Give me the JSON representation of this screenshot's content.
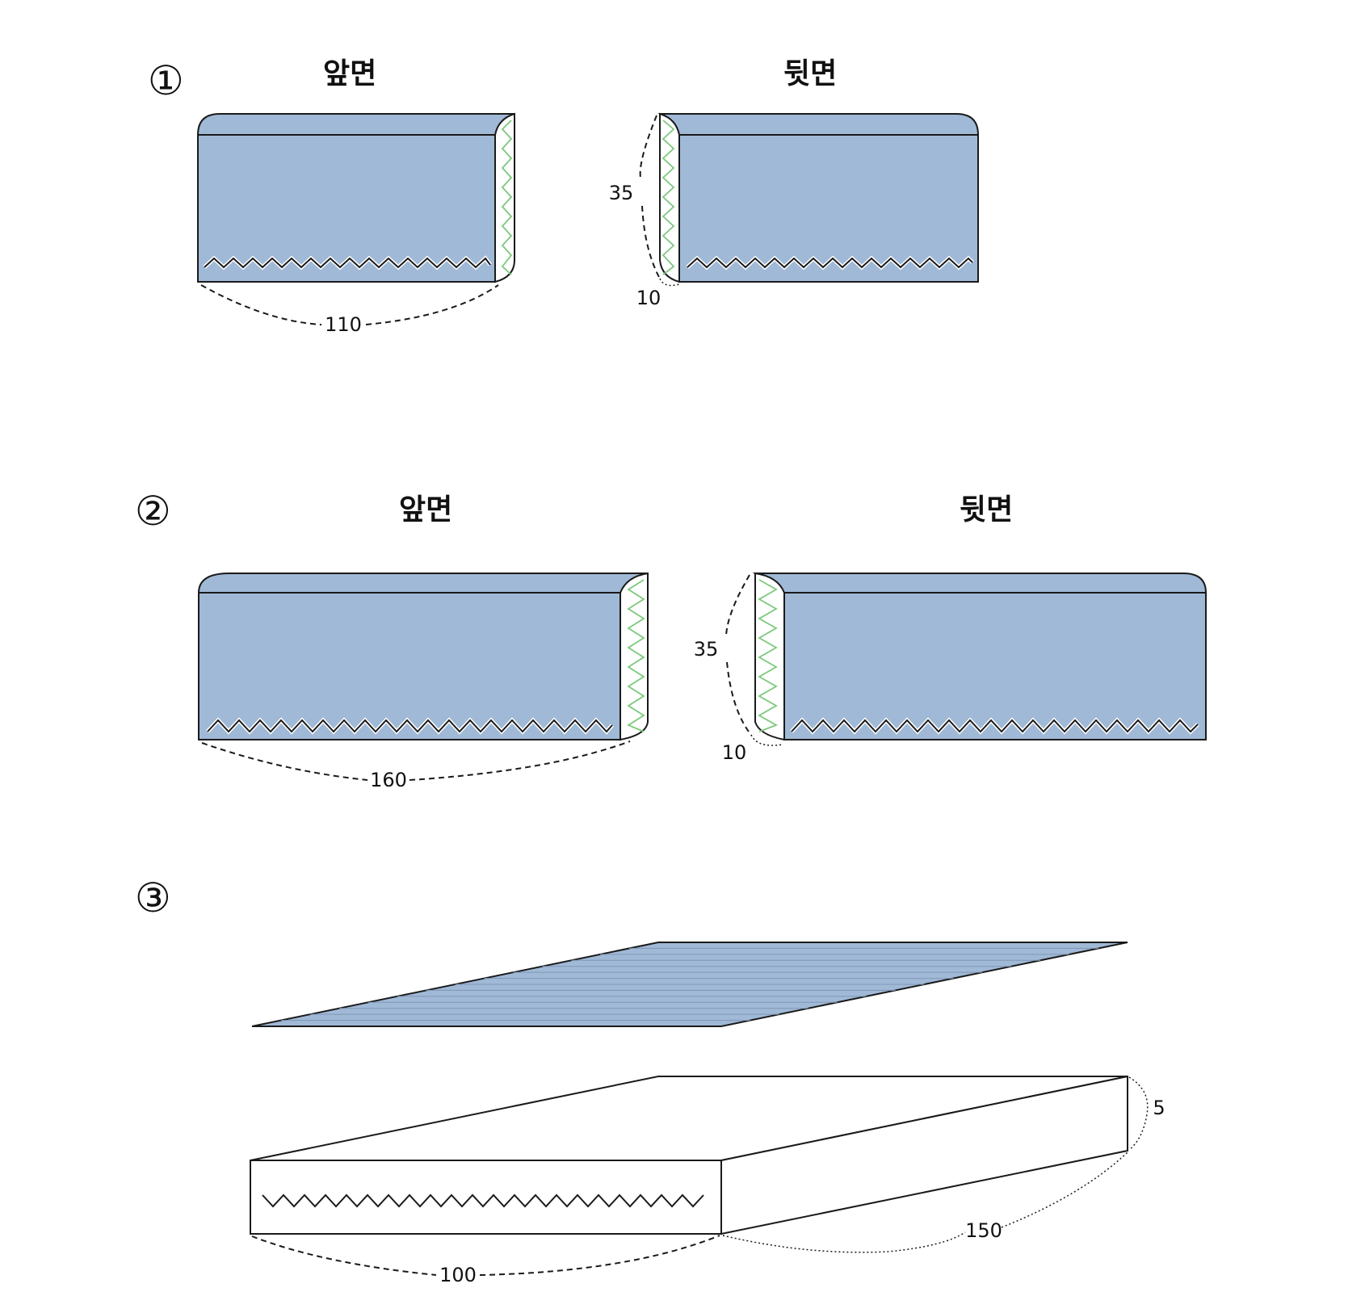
{
  "step1": {
    "marker": "①",
    "front_label": "앞면",
    "back_label": "뒷면",
    "length": "110",
    "height": "35",
    "flap": "10"
  },
  "step2": {
    "marker": "②",
    "front_label": "앞면",
    "back_label": "뒷면",
    "length": "160",
    "height": "35",
    "flap": "10"
  },
  "step3": {
    "marker": "③",
    "width": "100",
    "length": "150",
    "thickness": "5"
  },
  "colors": {
    "cover": "#a0b9d7",
    "stitch_green": "#7cc97c",
    "line": "#1a1a1a"
  }
}
